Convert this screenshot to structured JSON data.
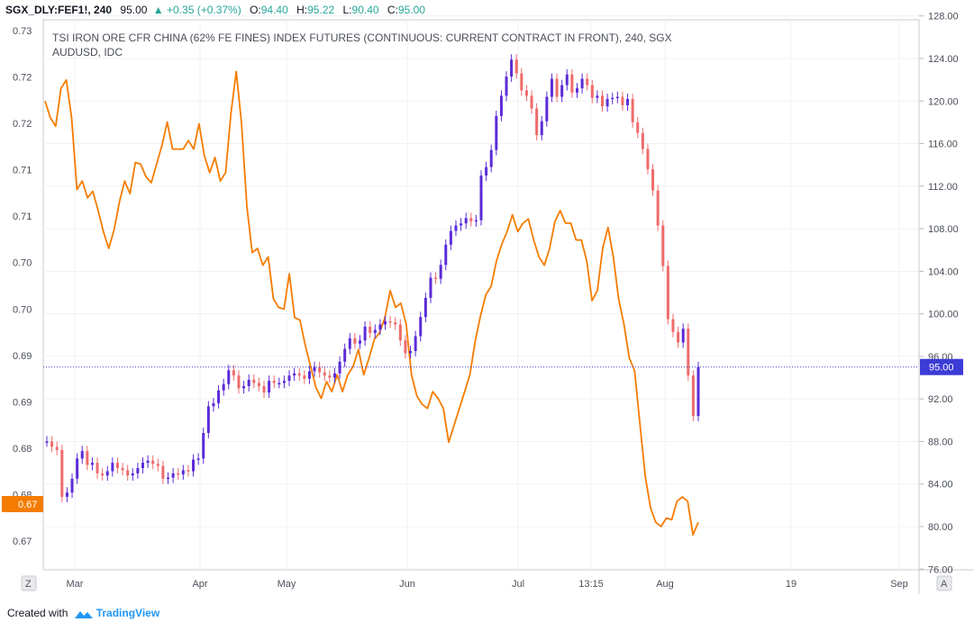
{
  "header": {
    "symbol": "SGX_DLY:FEF1!, 240",
    "last": "95.00",
    "change": "+0.35 (+0.37%)",
    "up_triangle": "▲",
    "open_label": "O:",
    "open": "94.40",
    "high_label": "H:",
    "high": "95.22",
    "low_label": "L:",
    "low": "90.40",
    "close_label": "C:",
    "close": "95.00"
  },
  "chart_data": {
    "type": "line",
    "title": "TSI IRON ORE CFR CHINA (62% FE FINES) INDEX FUTURES (CONTINUOUS: CURRENT CONTRACT IN FRONT), 240, SGX",
    "subtitle": "AUDUSD, IDC",
    "x_ticks": [
      "Mar",
      "Apr",
      "May",
      "Jun",
      "Jul",
      "13:15",
      "Aug",
      "19",
      "Sep"
    ],
    "left_axis": {
      "ticks": [
        "0.73",
        "0.72",
        "0.72",
        "0.71",
        "0.71",
        "0.70",
        "0.70",
        "0.69",
        "0.69",
        "0.68",
        "0.68",
        "0.67"
      ],
      "last_label": "0.67"
    },
    "right_axis": {
      "ticks": [
        "128.00",
        "124.00",
        "120.00",
        "116.00",
        "112.00",
        "108.00",
        "104.00",
        "100.00",
        "96.00",
        "92.00",
        "88.00",
        "84.00",
        "80.00",
        "76.00"
      ],
      "ylim": [
        76,
        128
      ],
      "last_price_label": "95.00",
      "last_price": 95.0
    },
    "series": [
      {
        "name": "AUDUSD",
        "color": "#f57c00",
        "axis": "left",
        "values": [
          0.7225,
          0.7205,
          0.7195,
          0.724,
          0.725,
          0.7205,
          0.712,
          0.713,
          0.711,
          0.7118,
          0.7095,
          0.707,
          0.705,
          0.7072,
          0.7105,
          0.713,
          0.7115,
          0.7152,
          0.715,
          0.7135,
          0.7128,
          0.715,
          0.7172,
          0.72,
          0.7168,
          0.7168,
          0.7168,
          0.7178,
          0.7168,
          0.7198,
          0.716,
          0.714,
          0.7158,
          0.713,
          0.714,
          0.721,
          0.726,
          0.7198,
          0.71,
          0.7045,
          0.705,
          0.703,
          0.704,
          0.699,
          0.698,
          0.6978,
          0.702,
          0.6968,
          0.6965,
          0.6935,
          0.691,
          0.6885,
          0.6872,
          0.6892,
          0.688,
          0.69,
          0.688,
          0.69,
          0.691,
          0.693,
          0.69,
          0.692,
          0.6942,
          0.695,
          0.6968,
          0.7,
          0.698,
          0.6985,
          0.696,
          0.69,
          0.6875,
          0.6865,
          0.686,
          0.688,
          0.6872,
          0.686,
          0.682,
          0.684,
          0.686,
          0.688,
          0.69,
          0.694,
          0.697,
          0.6995,
          0.7005,
          0.7035,
          0.7055,
          0.707,
          0.709,
          0.707,
          0.708,
          0.7085,
          0.706,
          0.704,
          0.703,
          0.705,
          0.7082,
          0.7095,
          0.708,
          0.708,
          0.706,
          0.706,
          0.7035,
          0.6988,
          0.7,
          0.705,
          0.7075,
          0.704,
          0.699,
          0.696,
          0.692,
          0.6905,
          0.6842,
          0.678,
          0.6742,
          0.6725,
          0.672,
          0.673,
          0.6728,
          0.675,
          0.6755,
          0.675,
          0.671,
          0.6725
        ]
      },
      {
        "name": "SGX_DLY:FEF1!",
        "color_up": "#5b2bd8",
        "color_down": "#ef6b6b",
        "axis": "right",
        "values": [
          88,
          87.5,
          87.2,
          82.8,
          83.2,
          84.5,
          86.4,
          87.1,
          85.8,
          86,
          85,
          84.8,
          85.2,
          86,
          85.5,
          85.3,
          84.8,
          85,
          85.5,
          86,
          86.2,
          85.9,
          85.7,
          84.5,
          84.6,
          85,
          84.9,
          85.3,
          85.2,
          86.3,
          86.4,
          88.8,
          91.3,
          91.6,
          92.8,
          93.4,
          94.7,
          94.2,
          93,
          93.2,
          93.8,
          93.5,
          93.2,
          92.6,
          93.7,
          93.5,
          93.5,
          93.7,
          94.2,
          94.4,
          94.2,
          93.9,
          94.6,
          95,
          94.5,
          94.2,
          94,
          94.4,
          95.5,
          96.7,
          97.7,
          97.2,
          97.5,
          98.8,
          98.2,
          98.5,
          99,
          99.3,
          99.2,
          99,
          97.5,
          96.3,
          96.5,
          97.9,
          99.7,
          101.5,
          103.4,
          103.3,
          104.6,
          106.5,
          107.8,
          108.3,
          108.5,
          109,
          108.7,
          108.8,
          113,
          113.8,
          115.4,
          118.6,
          120.5,
          122.3,
          123.9,
          122.6,
          121,
          120.5,
          119.3,
          116.8,
          118.1,
          120.4,
          122.1,
          120.4,
          121.5,
          122.5,
          120.8,
          121.2,
          122.1,
          121.5,
          120.3,
          120.5,
          119.5,
          120.2,
          120.3,
          120.4,
          119.6,
          120.2,
          118,
          117,
          115.5,
          113.6,
          111.6,
          108.3,
          104.5,
          99.5,
          98.3,
          97.3,
          98.6,
          94.2,
          90.4,
          95
        ]
      }
    ]
  },
  "axis_buttons": {
    "left": "Z",
    "right": "A"
  },
  "footer": {
    "made": "Created with",
    "brand": "TradingView"
  }
}
